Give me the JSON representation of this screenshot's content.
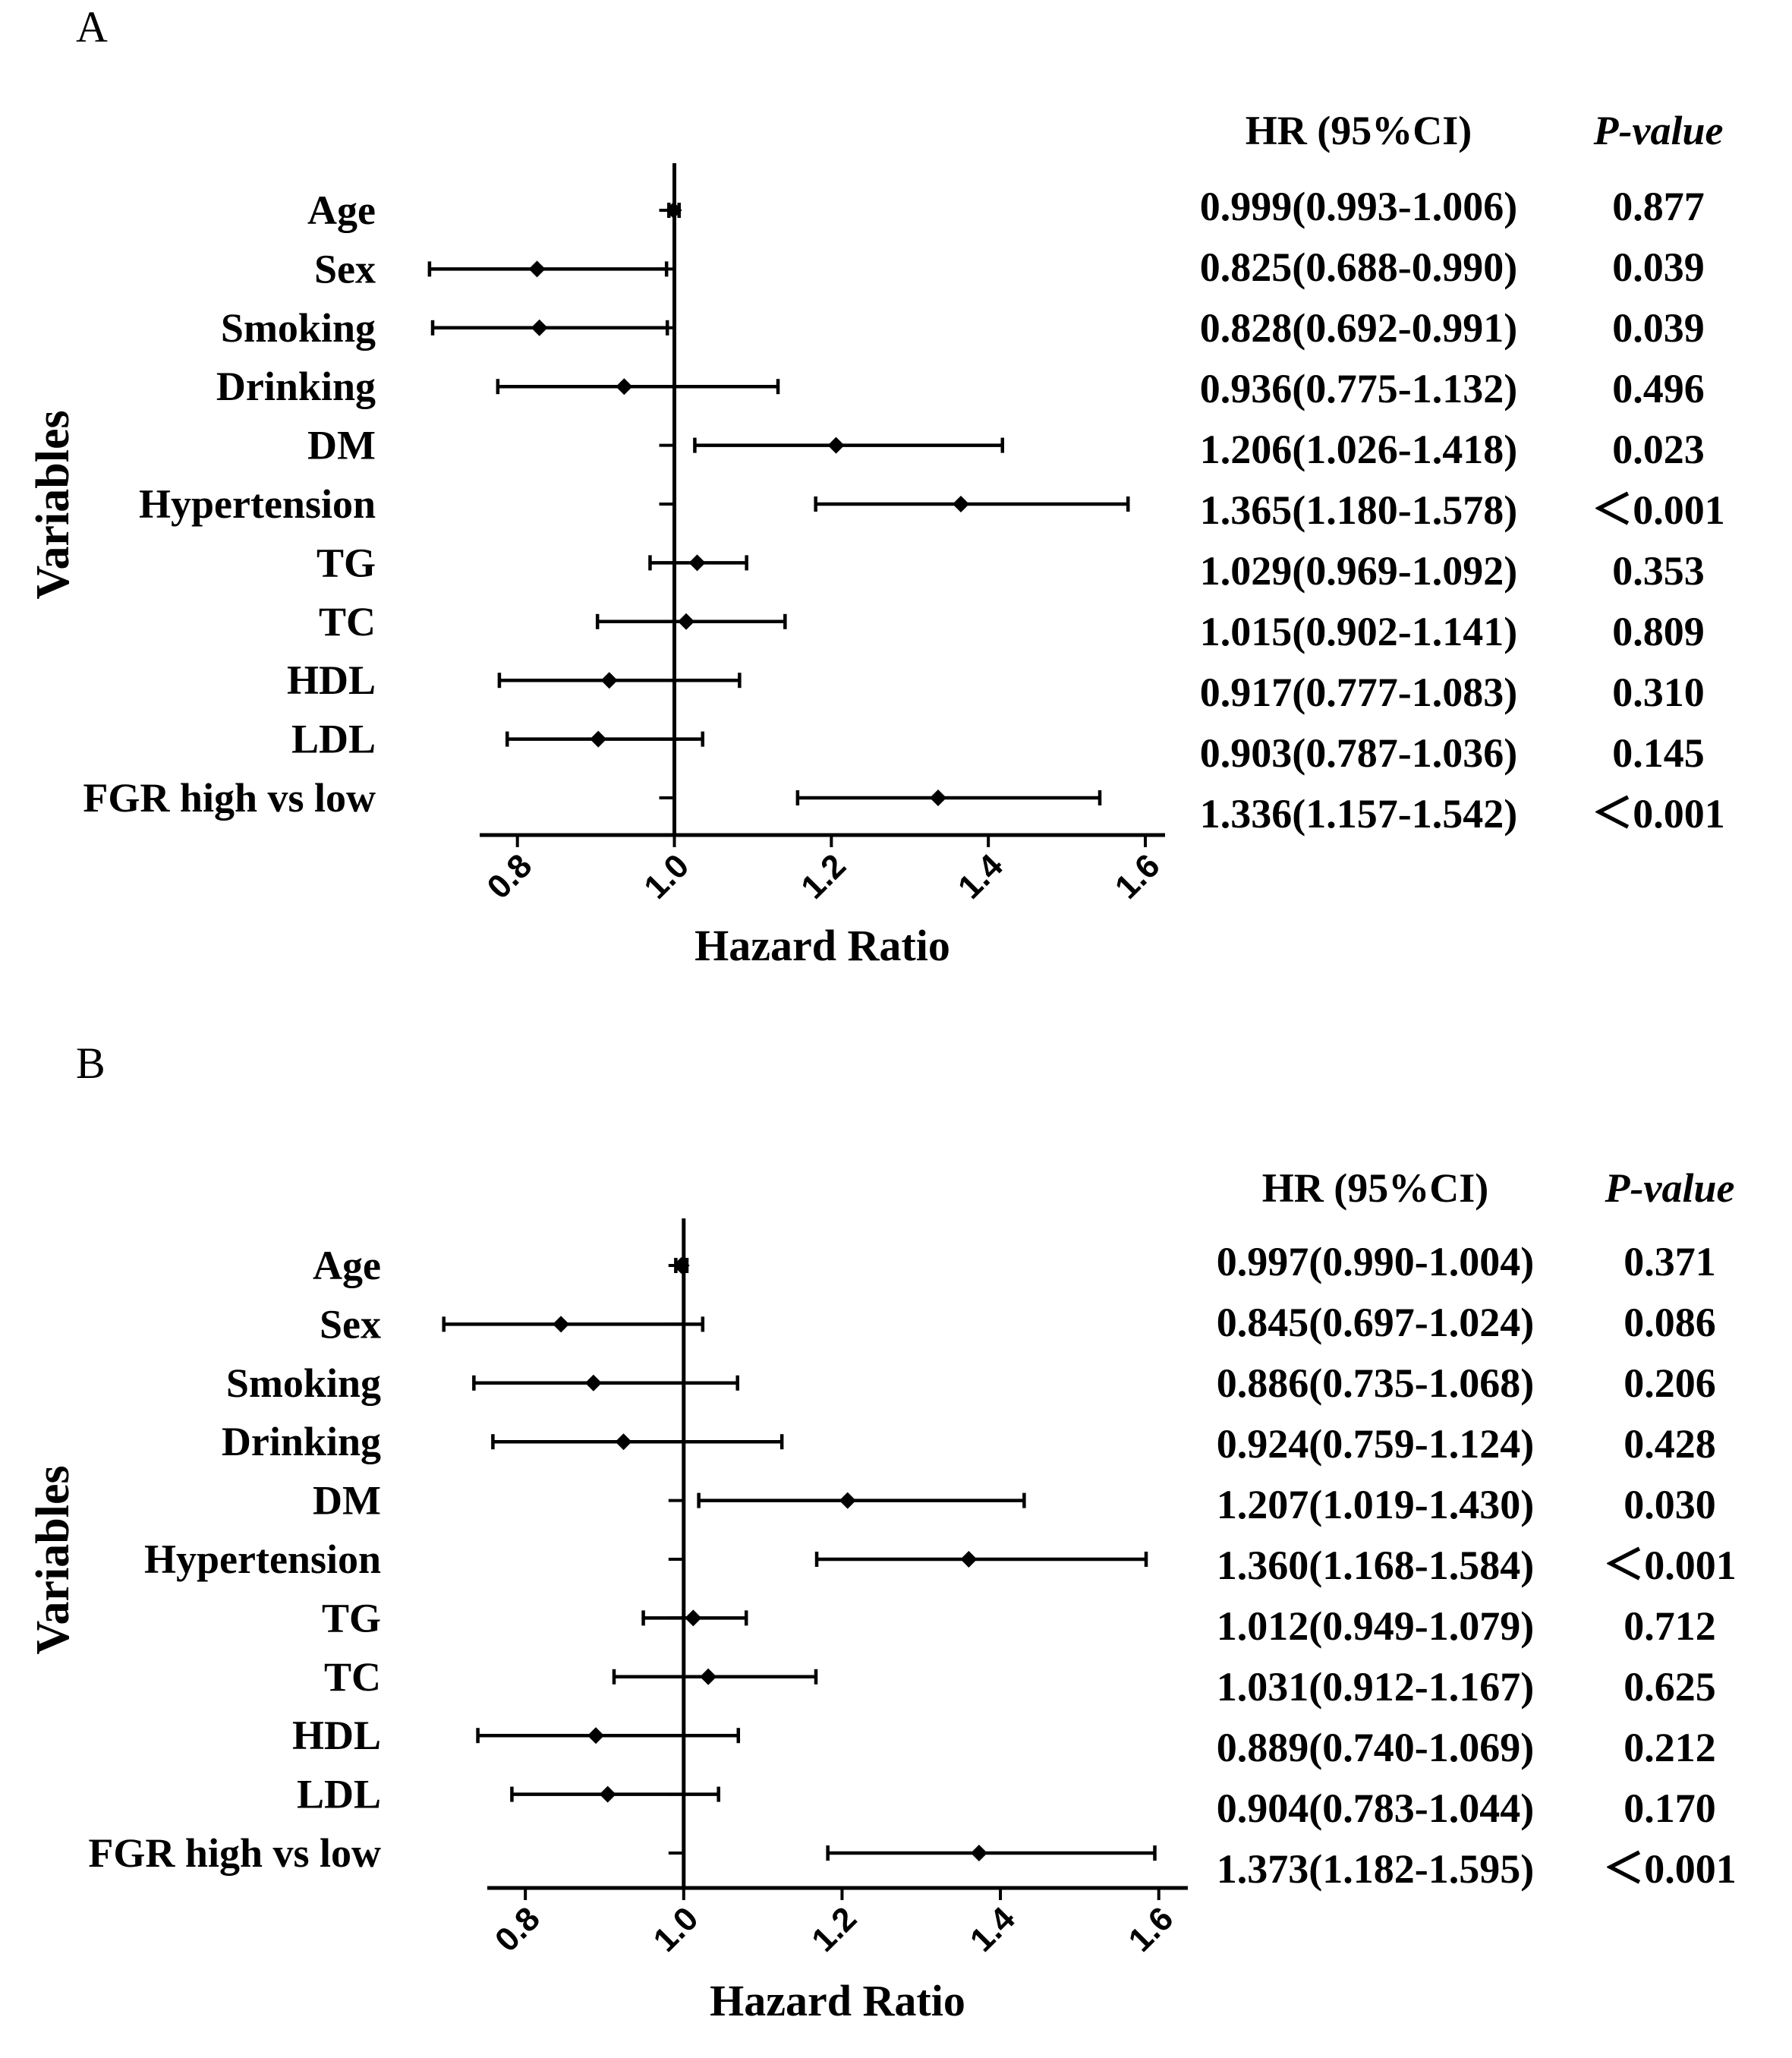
{
  "chart_data": [
    {
      "type": "forest",
      "panel": "A",
      "xlabel": "Hazard Ratio",
      "ylabel": "Variables",
      "xlim": [
        0.75,
        1.63
      ],
      "xticks": [
        "0.8",
        "1.0",
        "1.2",
        "1.4",
        "1.6"
      ],
      "reference_line": 1.0,
      "table_headers": {
        "hr": "HR (95%CI)",
        "p": "P-value"
      },
      "rows": [
        {
          "label": "Age",
          "hr": 0.999,
          "lo": 0.993,
          "hi": 1.006,
          "hr_text": "0.999(0.993-1.006)",
          "p": "0.877"
        },
        {
          "label": "Sex",
          "hr": 0.825,
          "lo": 0.688,
          "hi": 0.99,
          "hr_text": "0.825(0.688-0.990)",
          "p": "0.039"
        },
        {
          "label": "Smoking",
          "hr": 0.828,
          "lo": 0.692,
          "hi": 0.991,
          "hr_text": "0.828(0.692-0.991)",
          "p": "0.039"
        },
        {
          "label": "Drinking",
          "hr": 0.936,
          "lo": 0.775,
          "hi": 1.132,
          "hr_text": "0.936(0.775-1.132)",
          "p": "0.496"
        },
        {
          "label": "DM",
          "hr": 1.206,
          "lo": 1.026,
          "hi": 1.418,
          "hr_text": "1.206(1.026-1.418)",
          "p": "0.023"
        },
        {
          "label": "Hypertension",
          "hr": 1.365,
          "lo": 1.18,
          "hi": 1.578,
          "hr_text": "1.365(1.180-1.578)",
          "p": "＜0.001"
        },
        {
          "label": "TG",
          "hr": 1.029,
          "lo": 0.969,
          "hi": 1.092,
          "hr_text": "1.029(0.969-1.092)",
          "p": "0.353"
        },
        {
          "label": "TC",
          "hr": 1.015,
          "lo": 0.902,
          "hi": 1.141,
          "hr_text": "1.015(0.902-1.141)",
          "p": "0.809"
        },
        {
          "label": "HDL",
          "hr": 0.917,
          "lo": 0.777,
          "hi": 1.083,
          "hr_text": "0.917(0.777-1.083)",
          "p": "0.310"
        },
        {
          "label": "LDL",
          "hr": 0.903,
          "lo": 0.787,
          "hi": 1.036,
          "hr_text": "0.903(0.787-1.036)",
          "p": "0.145"
        },
        {
          "label": "FGR high vs low",
          "hr": 1.336,
          "lo": 1.157,
          "hi": 1.542,
          "hr_text": "1.336(1.157-1.542)",
          "p": "＜0.001"
        }
      ]
    },
    {
      "type": "forest",
      "panel": "B",
      "xlabel": "Hazard Ratio",
      "ylabel": "Variables",
      "xlim": [
        0.75,
        1.63
      ],
      "xticks": [
        "0.8",
        "1.0",
        "1.2",
        "1.4",
        "1.6"
      ],
      "reference_line": 1.0,
      "table_headers": {
        "hr": "HR (95%CI)",
        "p": "P-value"
      },
      "rows": [
        {
          "label": "Age",
          "hr": 0.997,
          "lo": 0.99,
          "hi": 1.004,
          "hr_text": "0.997(0.990-1.004)",
          "p": "0.371"
        },
        {
          "label": "Sex",
          "hr": 0.845,
          "lo": 0.697,
          "hi": 1.024,
          "hr_text": "0.845(0.697-1.024)",
          "p": "0.086"
        },
        {
          "label": "Smoking",
          "hr": 0.886,
          "lo": 0.735,
          "hi": 1.068,
          "hr_text": "0.886(0.735-1.068)",
          "p": "0.206"
        },
        {
          "label": "Drinking",
          "hr": 0.924,
          "lo": 0.759,
          "hi": 1.124,
          "hr_text": "0.924(0.759-1.124)",
          "p": "0.428"
        },
        {
          "label": "DM",
          "hr": 1.207,
          "lo": 1.019,
          "hi": 1.43,
          "hr_text": "1.207(1.019-1.430)",
          "p": "0.030"
        },
        {
          "label": "Hypertension",
          "hr": 1.36,
          "lo": 1.168,
          "hi": 1.584,
          "hr_text": "1.360(1.168-1.584)",
          "p": "＜0.001"
        },
        {
          "label": "TG",
          "hr": 1.012,
          "lo": 0.949,
          "hi": 1.079,
          "hr_text": "1.012(0.949-1.079)",
          "p": "0.712"
        },
        {
          "label": "TC",
          "hr": 1.031,
          "lo": 0.912,
          "hi": 1.167,
          "hr_text": "1.031(0.912-1.167)",
          "p": "0.625"
        },
        {
          "label": "HDL",
          "hr": 0.889,
          "lo": 0.74,
          "hi": 1.069,
          "hr_text": "0.889(0.740-1.069)",
          "p": "0.212"
        },
        {
          "label": "LDL",
          "hr": 0.904,
          "lo": 0.783,
          "hi": 1.044,
          "hr_text": "0.904(0.783-1.044)",
          "p": "0.170"
        },
        {
          "label": "FGR high vs low",
          "hr": 1.373,
          "lo": 1.182,
          "hi": 1.595,
          "hr_text": "1.373(1.182-1.595)",
          "p": "＜0.001"
        }
      ]
    }
  ]
}
